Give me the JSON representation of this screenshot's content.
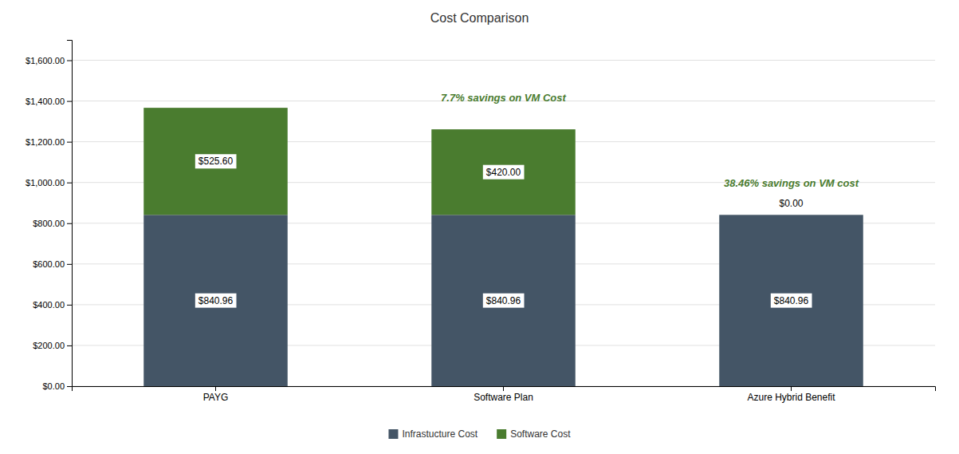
{
  "chart_data": {
    "type": "bar",
    "title": "Cost Comparison",
    "categories": [
      "PAYG",
      "Software Plan",
      "Azure Hybrid Benefit"
    ],
    "stacked": true,
    "series": [
      {
        "name": "Infrastucture Cost",
        "color": "#445566",
        "values": [
          840.96,
          840.96,
          840.96
        ],
        "value_labels": [
          "$840.96",
          "$840.96",
          "$840.96"
        ]
      },
      {
        "name": "Software Cost",
        "color": "#4a7c2f",
        "values": [
          525.6,
          420.0,
          0.0
        ],
        "value_labels": [
          "$525.60",
          "$420.00",
          "$0.00"
        ]
      }
    ],
    "data_labels": true,
    "annotations": [
      null,
      "7.7% savings on VM Cost",
      "38.46% savings on VM cost"
    ],
    "ylim": [
      0,
      1700
    ],
    "yticks": [
      {
        "value": 0,
        "label": "$0.00"
      },
      {
        "value": 200,
        "label": "$200.00"
      },
      {
        "value": 400,
        "label": "$400.00"
      },
      {
        "value": 600,
        "label": "$600.00"
      },
      {
        "value": 800,
        "label": "$800.00"
      },
      {
        "value": 1000,
        "label": "$1,000.00"
      },
      {
        "value": 1200,
        "label": "$1,200.00"
      },
      {
        "value": 1400,
        "label": "$1,400.00"
      },
      {
        "value": 1600,
        "label": "$1,600.00"
      }
    ],
    "grid": true,
    "legend": "bottom"
  }
}
